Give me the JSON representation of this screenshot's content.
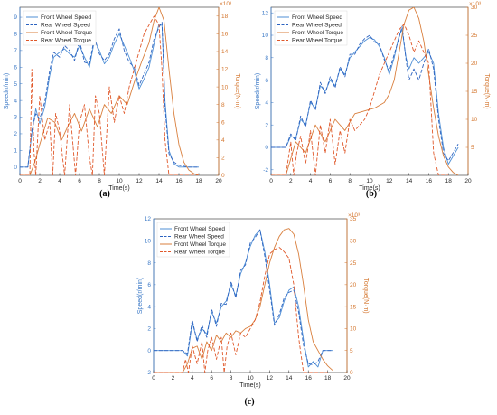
{
  "colors": {
    "front_speed": "#4f8fd6",
    "rear_speed": "#2b62c0",
    "front_torque": "#d97f3d",
    "rear_torque": "#e0582a"
  },
  "chart_data": [
    {
      "panel_label": "(a)",
      "type": "line",
      "xlabel": "Time(s)",
      "ylabel_left": "Speed(r/min)",
      "ylabel_right": "Torque(N·m)",
      "right_exponent": "×10³",
      "xlim": [
        0,
        20
      ],
      "ylim_left": [
        -0.5,
        9.6
      ],
      "ylim_right": [
        0,
        19
      ],
      "x_ticks": [
        0,
        2,
        4,
        6,
        8,
        10,
        12,
        14,
        16,
        18,
        20
      ],
      "y_ticks_left": [
        0,
        1,
        2,
        3,
        4,
        5,
        6,
        7,
        8,
        9
      ],
      "y_ticks_right": [
        0,
        2,
        4,
        6,
        8,
        10,
        12,
        14,
        16,
        18
      ],
      "legend_position": "top-left",
      "legend": [
        "Front Wheel Speed",
        "Rear Wheel Speed",
        "Front Wheel Torque",
        "Rear Wheel Torque"
      ],
      "series": [
        {
          "name": "Front Wheel Speed",
          "axis": "left",
          "style": "solid",
          "color_key": "front_speed",
          "x": [
            0,
            0.8,
            1.2,
            1.6,
            2.0,
            2.5,
            3.0,
            3.4,
            4.0,
            4.5,
            5.0,
            5.5,
            6.0,
            6.5,
            7.0,
            7.5,
            8.0,
            8.5,
            9.0,
            9.5,
            10.0,
            10.5,
            11.0,
            11.5,
            12.0,
            12.5,
            13.0,
            13.5,
            14.0,
            14.3,
            14.6,
            15.0,
            15.5,
            16.0,
            17.0,
            18.0
          ],
          "y": [
            0,
            0,
            2.0,
            3.5,
            2.6,
            3.6,
            5.5,
            6.6,
            6.9,
            7.1,
            6.8,
            6.6,
            7.3,
            6.6,
            6.0,
            7.6,
            7.0,
            6.2,
            6.6,
            7.4,
            8.0,
            7.3,
            6.6,
            5.8,
            4.7,
            5.3,
            6.0,
            7.4,
            8.6,
            8.5,
            4.0,
            1.0,
            0.2,
            0.0,
            0.0,
            0.0
          ]
        },
        {
          "name": "Rear Wheel Speed",
          "axis": "left",
          "style": "dashed",
          "color_key": "rear_speed",
          "x": [
            0,
            0.8,
            1.2,
            1.6,
            2.0,
            2.5,
            3.0,
            3.4,
            4.0,
            4.5,
            5.0,
            5.5,
            6.0,
            6.5,
            7.0,
            7.5,
            8.0,
            8.5,
            9.0,
            9.5,
            10.0,
            10.5,
            11.0,
            11.5,
            12.0,
            12.5,
            13.0,
            13.5,
            14.0,
            14.3,
            14.6,
            15.0,
            15.5,
            16.0,
            17.0,
            18.0
          ],
          "y": [
            0,
            0,
            2.2,
            3.2,
            2.9,
            3.9,
            5.8,
            6.9,
            6.6,
            7.3,
            7.0,
            6.4,
            7.6,
            6.3,
            6.2,
            7.8,
            6.8,
            6.4,
            6.8,
            7.7,
            8.3,
            7.0,
            6.3,
            6.0,
            4.9,
            5.6,
            6.3,
            7.7,
            8.4,
            8.7,
            3.6,
            0.8,
            0.3,
            0.1,
            0.0,
            0.0
          ]
        },
        {
          "name": "Front Wheel Torque",
          "axis": "right",
          "style": "solid",
          "color_key": "front_torque",
          "x": [
            0,
            1.0,
            1.5,
            2.0,
            2.8,
            3.5,
            4.2,
            4.8,
            5.5,
            6.2,
            7.0,
            7.8,
            8.5,
            9.2,
            10.0,
            10.8,
            11.5,
            12.3,
            13.0,
            13.5,
            14.0,
            14.5,
            15.0,
            15.5,
            16.0,
            16.5,
            17.0,
            17.5,
            18.0
          ],
          "y": [
            0,
            0,
            1.5,
            3.5,
            6.5,
            6.0,
            4.0,
            5.5,
            7.0,
            5.0,
            7.5,
            5.5,
            8.0,
            7.0,
            9.0,
            8.0,
            10.5,
            13.0,
            15.0,
            17.5,
            19.0,
            17.5,
            12.0,
            7.0,
            3.5,
            1.5,
            0.6,
            0.2,
            0.0
          ]
        },
        {
          "name": "Rear Wheel Torque",
          "axis": "right",
          "style": "dashed",
          "color_key": "rear_torque",
          "x": [
            0,
            1.0,
            1.2,
            1.4,
            1.6,
            2.0,
            2.5,
            3.0,
            3.3,
            3.6,
            4.0,
            4.5,
            5.0,
            5.3,
            5.6,
            6.0,
            6.5,
            7.0,
            7.3,
            7.6,
            8.0,
            8.5,
            9.0,
            9.5,
            10.0,
            10.5,
            11.0,
            11.5,
            12.0,
            12.5,
            13.0,
            13.5,
            14.0,
            14.3,
            14.6,
            15.0,
            15.5,
            16.0,
            17.0,
            18.0
          ],
          "y": [
            0,
            0,
            12,
            3,
            0,
            9,
            4,
            6,
            0,
            7,
            5,
            0,
            8,
            4,
            0,
            6,
            8,
            2,
            0,
            9,
            7,
            0,
            10,
            6,
            9,
            7,
            10,
            12,
            14,
            16,
            17,
            18,
            17,
            12,
            4,
            0,
            0,
            0,
            0,
            0
          ]
        }
      ]
    },
    {
      "panel_label": "(b)",
      "type": "line",
      "xlabel": "Time(s)",
      "ylabel_left": "Speed(r/min)",
      "ylabel_right": "Torque(N·m)",
      "right_exponent": "×10³",
      "xlim": [
        0,
        20
      ],
      "ylim_left": [
        -2.5,
        12.5
      ],
      "ylim_right": [
        0,
        30
      ],
      "x_ticks": [
        0,
        2,
        4,
        6,
        8,
        10,
        12,
        14,
        16,
        18,
        20
      ],
      "y_ticks_left": [
        -2,
        0,
        2,
        4,
        6,
        8,
        10,
        12
      ],
      "y_ticks_right": [
        5,
        10,
        15,
        20,
        25,
        30
      ],
      "legend_position": "top-left",
      "legend": [
        "Front Wheel Speed",
        "Rear Wheel Speed",
        "Front Wheel Torque",
        "Rear Wheel Torque"
      ],
      "series": [
        {
          "name": "Front Wheel Speed",
          "axis": "left",
          "style": "solid",
          "color_key": "front_speed",
          "x": [
            0,
            1.5,
            2.0,
            2.5,
            3.0,
            3.5,
            4.0,
            4.5,
            5.0,
            5.5,
            6.0,
            6.5,
            7.0,
            7.5,
            8.0,
            8.5,
            9.0,
            9.5,
            10.0,
            10.5,
            11.0,
            11.5,
            12.0,
            12.5,
            13.0,
            13.3,
            13.7,
            14.0,
            14.5,
            15.0,
            15.5,
            16.0,
            16.5,
            17.0,
            17.5,
            18.0,
            19.0
          ],
          "y": [
            0,
            0,
            1.0,
            0.8,
            2.5,
            2.0,
            4.0,
            3.5,
            5.5,
            5.0,
            6.0,
            5.5,
            7.0,
            6.5,
            8.0,
            8.5,
            9.0,
            9.5,
            9.8,
            9.6,
            9.0,
            8.0,
            6.5,
            8.0,
            10.0,
            10.5,
            8.0,
            7.0,
            8.0,
            7.5,
            8.0,
            8.5,
            7.5,
            3.0,
            0.0,
            -1.5,
            0.0
          ]
        },
        {
          "name": "Rear Wheel Speed",
          "axis": "left",
          "style": "dashed",
          "color_key": "rear_speed",
          "x": [
            0,
            1.5,
            2.0,
            2.5,
            3.0,
            3.5,
            4.0,
            4.5,
            5.0,
            5.5,
            6.0,
            6.5,
            7.0,
            7.5,
            8.0,
            8.5,
            9.0,
            9.5,
            10.0,
            10.5,
            11.0,
            11.5,
            12.0,
            12.5,
            13.0,
            13.3,
            13.7,
            14.0,
            14.5,
            15.0,
            15.5,
            16.0,
            16.5,
            17.0,
            17.5,
            18.0,
            19.0
          ],
          "y": [
            0,
            0,
            1.2,
            0.6,
            2.8,
            1.8,
            4.2,
            3.3,
            5.8,
            4.8,
            6.3,
            5.3,
            7.2,
            6.3,
            8.3,
            8.3,
            9.2,
            9.7,
            10.0,
            9.4,
            9.2,
            7.8,
            6.8,
            8.3,
            9.8,
            10.8,
            7.8,
            6.0,
            7.0,
            6.0,
            7.5,
            8.8,
            7.0,
            2.5,
            -0.5,
            -1.2,
            0.3
          ]
        },
        {
          "name": "Front Wheel Torque",
          "axis": "right",
          "style": "solid",
          "color_key": "front_torque",
          "x": [
            0,
            1.5,
            2.5,
            3.5,
            4.5,
            5.5,
            6.5,
            7.5,
            8.5,
            9.5,
            10.5,
            11.5,
            12.0,
            12.5,
            13.0,
            13.5,
            14.0,
            14.5,
            15.0,
            15.5,
            16.0,
            16.5,
            17.0,
            17.5,
            18.0,
            18.5,
            19.0
          ],
          "y": [
            0,
            0,
            6.0,
            4.0,
            9.0,
            6.0,
            10.0,
            8.0,
            11.0,
            11.5,
            12.0,
            13.0,
            14.5,
            17.0,
            22.0,
            27.0,
            29.5,
            30.0,
            28.0,
            24.0,
            18.0,
            12.0,
            7.0,
            3.5,
            1.5,
            0.5,
            0.0
          ]
        },
        {
          "name": "Rear Wheel Torque",
          "axis": "right",
          "style": "dashed",
          "color_key": "rear_torque",
          "x": [
            0,
            1.5,
            2.0,
            2.3,
            2.6,
            3.0,
            3.5,
            4.0,
            4.5,
            5.0,
            5.5,
            6.0,
            6.5,
            7.0,
            7.5,
            8.0,
            8.5,
            9.0,
            9.5,
            10.0,
            10.5,
            11.0,
            11.5,
            12.0,
            12.5,
            13.0,
            13.5,
            14.0,
            14.5,
            15.0,
            15.5,
            16.0,
            16.5,
            17.0,
            18.0
          ],
          "y": [
            0,
            0,
            6,
            0,
            4,
            7,
            2,
            8,
            0,
            9,
            4,
            10,
            2,
            8,
            4,
            10,
            8,
            9,
            10,
            12,
            15,
            18,
            20,
            22,
            24,
            26,
            27,
            25,
            22,
            24,
            22,
            20,
            4,
            0,
            0
          ]
        }
      ]
    },
    {
      "panel_label": "(c)",
      "type": "line",
      "xlabel": "Time(s)",
      "ylabel_left": "Speed(r/min)",
      "ylabel_right": "Torque(N·m)",
      "right_exponent": "×10³",
      "xlim": [
        0,
        20
      ],
      "ylim_left": [
        -2,
        12
      ],
      "ylim_right": [
        0,
        35
      ],
      "x_ticks": [
        0,
        2,
        4,
        6,
        8,
        10,
        12,
        14,
        16,
        18,
        20
      ],
      "y_ticks_left": [
        -2,
        0,
        2,
        4,
        6,
        8,
        10,
        12
      ],
      "y_ticks_right": [
        0,
        5,
        10,
        15,
        20,
        25,
        30,
        35
      ],
      "legend_position": "top-left",
      "legend": [
        "Front Wheel Speed",
        "Rear Wheel Speed",
        "Front Wheel Torque",
        "Rear Wheel Torque"
      ],
      "series": [
        {
          "name": "Front Wheel Speed",
          "axis": "left",
          "style": "solid",
          "color_key": "front_speed",
          "x": [
            0,
            3.0,
            3.5,
            4.0,
            4.5,
            5.0,
            5.5,
            6.0,
            6.5,
            7.0,
            7.5,
            8.0,
            8.5,
            9.0,
            9.5,
            10.0,
            10.5,
            11.0,
            11.5,
            12.0,
            12.5,
            13.0,
            13.5,
            14.0,
            14.5,
            15.0,
            15.5,
            16.0,
            16.5,
            17.0,
            17.5,
            18.0,
            18.5
          ],
          "y": [
            0,
            0,
            -0.5,
            2.5,
            1.0,
            2.0,
            1.5,
            3.5,
            2.5,
            4.0,
            4.5,
            6.0,
            5.0,
            7.0,
            8.0,
            9.5,
            10.5,
            11.0,
            9.0,
            6.0,
            2.5,
            3.0,
            4.5,
            5.5,
            5.8,
            4.0,
            1.0,
            -1.5,
            -1.0,
            -1.5,
            0.0,
            0.0,
            0.0
          ]
        },
        {
          "name": "Rear Wheel Speed",
          "axis": "left",
          "style": "dashed",
          "color_key": "rear_speed",
          "x": [
            0,
            3.0,
            3.5,
            4.0,
            4.5,
            5.0,
            5.5,
            6.0,
            6.5,
            7.0,
            7.5,
            8.0,
            8.5,
            9.0,
            9.5,
            10.0,
            10.5,
            11.0,
            11.5,
            12.0,
            12.5,
            13.0,
            13.5,
            14.0,
            14.5,
            15.0,
            15.5,
            16.0,
            16.5,
            17.0,
            17.5,
            18.0,
            18.5
          ],
          "y": [
            0,
            0,
            -0.3,
            2.8,
            0.8,
            2.3,
            1.2,
            3.8,
            2.2,
            4.3,
            4.2,
            6.3,
            4.8,
            7.3,
            7.8,
            9.8,
            10.3,
            11.0,
            8.6,
            5.5,
            2.3,
            3.3,
            4.8,
            5.3,
            5.5,
            3.5,
            0.5,
            -1.2,
            -1.3,
            -1.0,
            0.0,
            0.0,
            0.0
          ]
        },
        {
          "name": "Front Wheel Torque",
          "axis": "right",
          "style": "solid",
          "color_key": "front_torque",
          "x": [
            0,
            3.0,
            3.5,
            4.0,
            4.5,
            5.0,
            5.5,
            6.0,
            6.5,
            7.0,
            7.5,
            8.0,
            8.5,
            9.0,
            9.5,
            10.0,
            10.5,
            11.0,
            11.5,
            12.0,
            12.5,
            13.0,
            13.5,
            14.0,
            14.5,
            15.0,
            15.5,
            16.0,
            16.5,
            17.0,
            17.5,
            18.0,
            18.5
          ],
          "y": [
            0,
            0,
            2.0,
            5.5,
            6.0,
            3.0,
            7.0,
            5.0,
            8.5,
            7.0,
            9.0,
            8.0,
            9.5,
            9.0,
            10.0,
            10.5,
            12.0,
            15.0,
            20.0,
            25.0,
            28.5,
            31.0,
            32.5,
            32.8,
            31.5,
            27.0,
            20.0,
            12.0,
            7.0,
            5.0,
            3.0,
            1.5,
            0.5
          ]
        },
        {
          "name": "Rear Wheel Torque",
          "axis": "right",
          "style": "dashed",
          "color_key": "rear_torque",
          "x": [
            0,
            3.0,
            3.3,
            3.6,
            4.0,
            4.5,
            5.0,
            5.3,
            5.6,
            6.0,
            6.5,
            7.0,
            7.3,
            7.6,
            8.0,
            8.5,
            9.0,
            9.5,
            10.0,
            10.5,
            11.0,
            11.5,
            12.0,
            12.5,
            13.0,
            13.5,
            14.0,
            14.5,
            15.0,
            15.5,
            16.0,
            17.0,
            18.0
          ],
          "y": [
            0,
            0,
            3,
            0,
            6,
            2,
            7,
            0,
            5,
            8,
            3,
            8,
            0,
            6,
            9,
            4,
            9,
            8,
            10,
            12,
            16,
            22,
            27,
            28,
            28.5,
            27.5,
            26,
            20,
            8,
            0,
            0,
            0,
            0
          ]
        }
      ]
    }
  ]
}
